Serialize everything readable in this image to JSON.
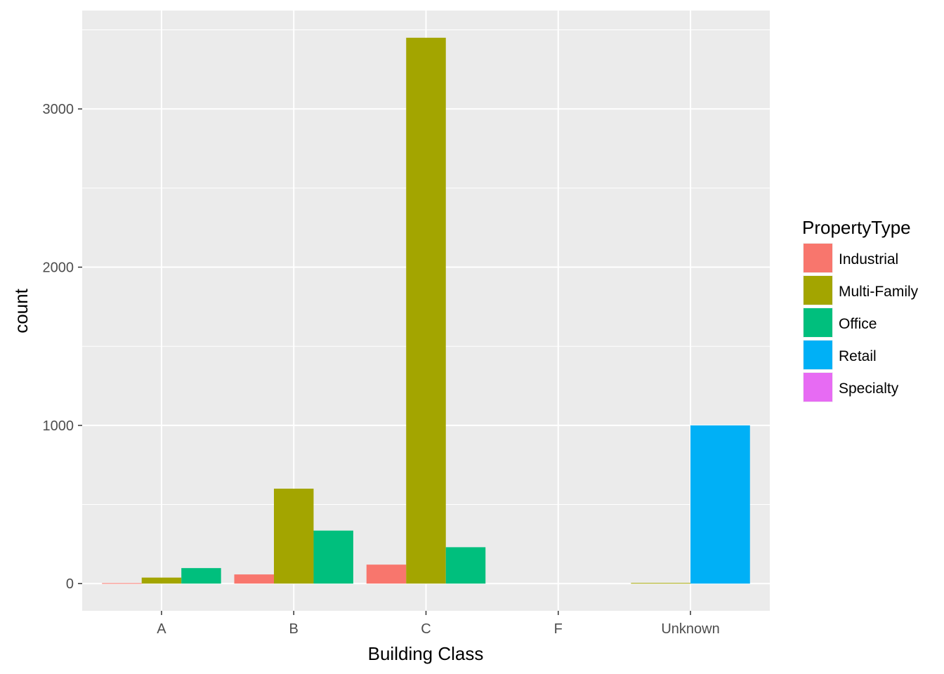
{
  "chart_data": {
    "type": "bar",
    "position": "dodge",
    "categories": [
      "A",
      "B",
      "C",
      "F",
      "Unknown"
    ],
    "series": [
      {
        "name": "Industrial",
        "color": "#F8766D",
        "values": [
          3,
          58,
          120,
          0,
          0
        ]
      },
      {
        "name": "Multi-Family",
        "color": "#A3A500",
        "values": [
          38,
          600,
          3450,
          0,
          4
        ]
      },
      {
        "name": "Office",
        "color": "#00BF7D",
        "values": [
          98,
          335,
          230,
          0,
          0
        ]
      },
      {
        "name": "Retail",
        "color": "#00B0F6",
        "values": [
          0,
          0,
          0,
          0,
          1000
        ]
      },
      {
        "name": "Specialty",
        "color": "#E76BF3",
        "values": [
          0,
          0,
          0,
          0,
          0
        ]
      }
    ],
    "bars_per_category": {
      "A": [
        "Industrial",
        "Multi-Family",
        "Office"
      ],
      "B": [
        "Industrial",
        "Multi-Family",
        "Office"
      ],
      "C": [
        "Industrial",
        "Multi-Family",
        "Office"
      ],
      "F": [
        "Specialty"
      ],
      "Unknown": [
        "Multi-Family",
        "Retail"
      ]
    },
    "xlabel": "Building Class",
    "ylabel": "count",
    "legend_title": "PropertyType",
    "legend_position": "right",
    "yticks": [
      0,
      1000,
      2000,
      3000
    ],
    "ylim": [
      -172,
      3622
    ],
    "grid": true,
    "panel_background": "#EBEBEB",
    "grid_color": "#FFFFFF"
  }
}
